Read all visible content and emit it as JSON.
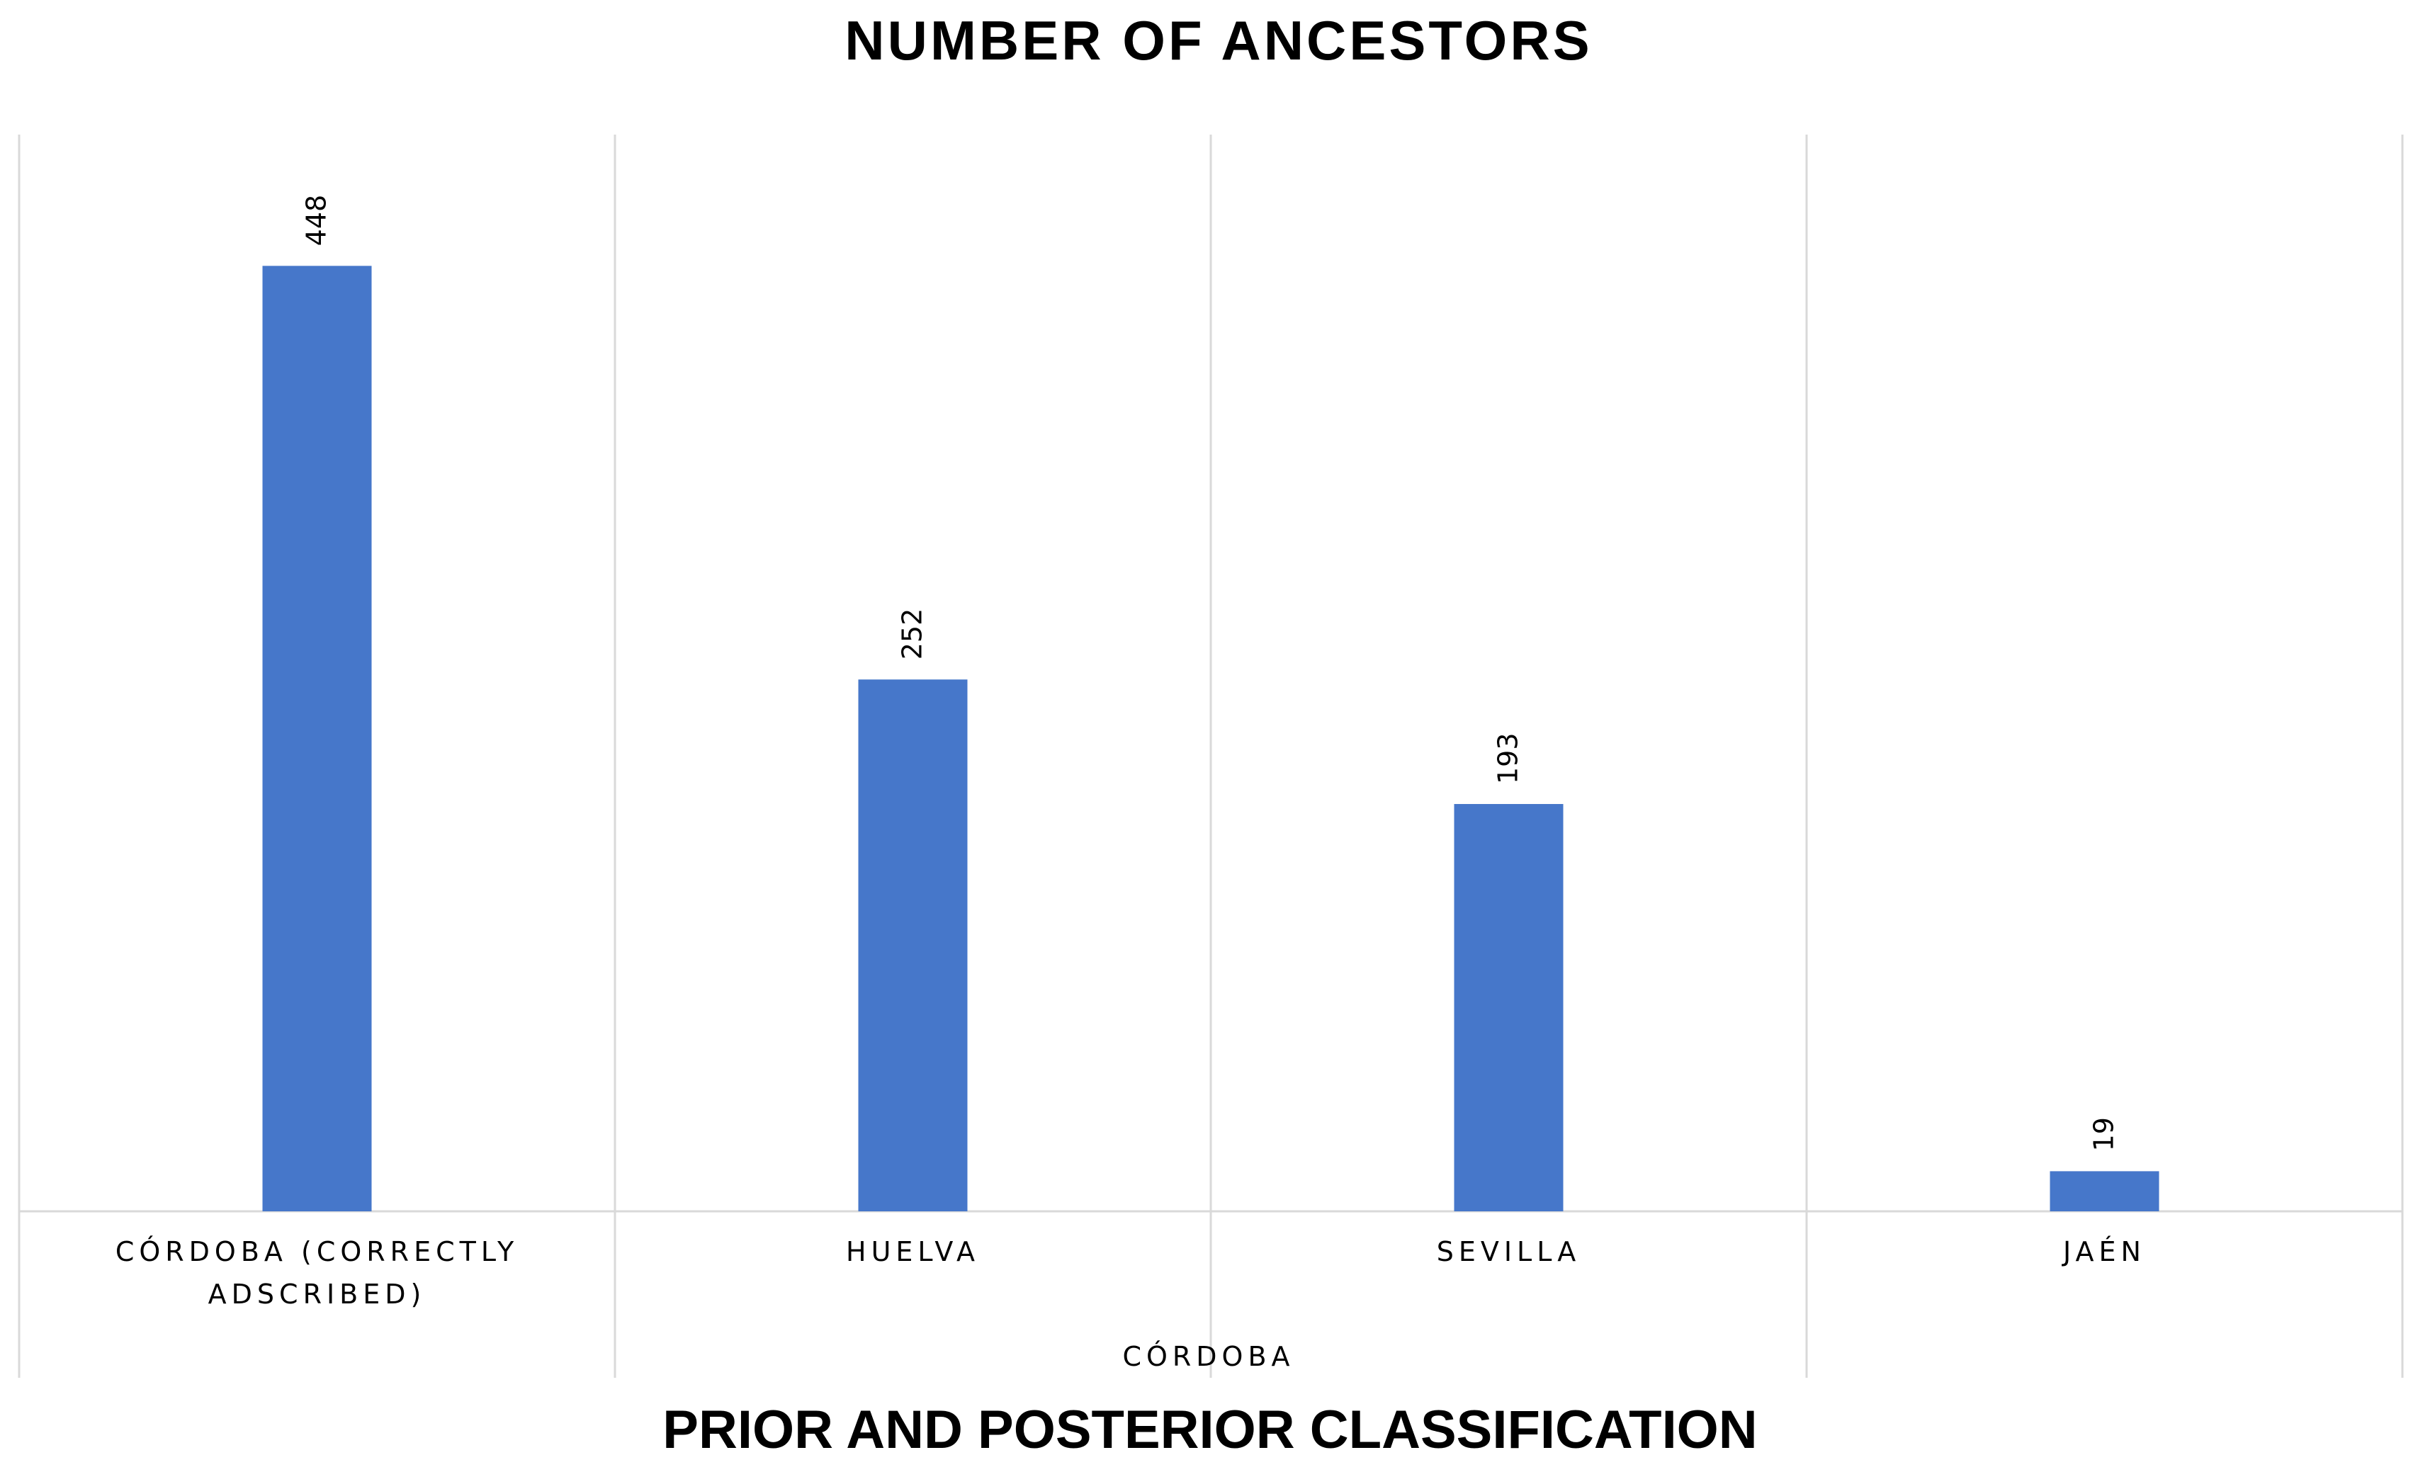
{
  "chart_data": {
    "type": "bar",
    "title": "NUMBER OF ANCESTORS",
    "xlabel": "PRIOR AND POSTERIOR CLASSIFICATION",
    "group_label": "CÓRDOBA",
    "ylabel": "",
    "categories": [
      [
        "CÓRDOBA (CORRECTLY",
        "ADSCRIBED)"
      ],
      [
        "HUELVA"
      ],
      [
        "SEVILLA"
      ],
      [
        "JAÉN"
      ]
    ],
    "values": [
      448,
      252,
      193,
      19
    ],
    "value_labels": [
      "448",
      "252",
      "193",
      "19"
    ],
    "ylim": [
      0,
      500
    ],
    "grid": "vertical category separators",
    "legend": "none",
    "bar_color": "#4677CA",
    "grid_color": "#D9D9D9"
  }
}
